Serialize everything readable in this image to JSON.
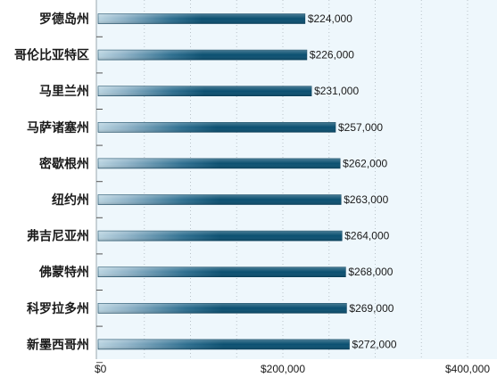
{
  "chart_data": {
    "type": "bar",
    "orientation": "horizontal",
    "categories": [
      "罗德岛州",
      "哥伦比亚特区",
      "马里兰州",
      "马萨诸塞州",
      "密歇根州",
      "纽约州",
      "弗吉尼亚州",
      "佛蒙特州",
      "科罗拉多州",
      "新墨西哥州"
    ],
    "values": [
      224000,
      226000,
      231000,
      257000,
      262000,
      263000,
      264000,
      268000,
      269000,
      272000
    ],
    "value_labels": [
      "$224,000",
      "$226,000",
      "$231,000",
      "$257,000",
      "$262,000",
      "$263,000",
      "$264,000",
      "$268,000",
      "$269,000",
      "$272,000"
    ],
    "xlim": [
      0,
      400000
    ],
    "x_ticks": [
      0,
      200000,
      400000
    ],
    "x_tick_labels": [
      "$0",
      "$200,000",
      "$400,000"
    ],
    "title": "",
    "xlabel": "",
    "ylabel": "",
    "grid": true,
    "legend": "none",
    "colors": {
      "bar_dark": "#0b5071",
      "bar_light": "#a8c8d8",
      "plot_bg": "#eef7fc",
      "grid": "#b9c3c9"
    }
  }
}
